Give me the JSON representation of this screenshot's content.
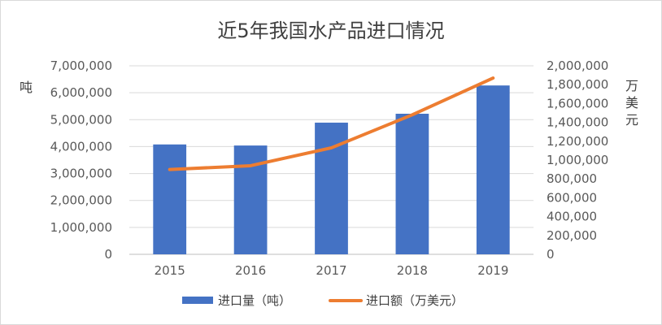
{
  "chart_data": {
    "type": "bar",
    "title": "近5年我国水产品进口情况",
    "categories": [
      "2015",
      "2016",
      "2017",
      "2018",
      "2019"
    ],
    "series": [
      {
        "name": "进口量（吨）",
        "type": "bar",
        "axis": "left",
        "color": "#4472C4",
        "values": [
          4080000,
          4040000,
          4890000,
          5220000,
          6270000
        ]
      },
      {
        "name": "进口额（万美元）",
        "type": "line",
        "axis": "right",
        "color": "#ED7D31",
        "values": [
          900000,
          940000,
          1130000,
          1480000,
          1870000
        ]
      }
    ],
    "ylabel": "吨",
    "y2label": "万美元",
    "ylim": [
      0,
      7000000
    ],
    "y2lim": [
      0,
      2000000
    ],
    "yticks": [
      "0",
      "1,000,000",
      "2,000,000",
      "3,000,000",
      "4,000,000",
      "5,000,000",
      "6,000,000",
      "7,000,000"
    ],
    "y2ticks": [
      "0",
      "200,000",
      "400,000",
      "600,000",
      "800,000",
      "1,000,000",
      "1,200,000",
      "1,400,000",
      "1,600,000",
      "1,800,000",
      "2,000,000"
    ],
    "grid": true,
    "legend": "bottom"
  }
}
